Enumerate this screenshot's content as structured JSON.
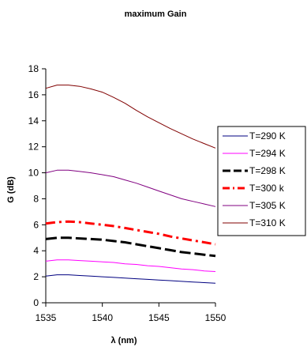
{
  "chart_data": {
    "type": "line",
    "title": "maximum Gain",
    "xlabel": "λ (nm)",
    "ylabel": "G (dB)",
    "xlim": [
      1535,
      1550
    ],
    "ylim": [
      0,
      18
    ],
    "xticks": [
      1535,
      1540,
      1545,
      1550
    ],
    "yticks": [
      0,
      2,
      4,
      6,
      8,
      10,
      12,
      14,
      16,
      18
    ],
    "grid": false,
    "legend_position": "right",
    "x": [
      1535,
      1536,
      1537,
      1538,
      1539,
      1540,
      1541,
      1542,
      1543,
      1544,
      1545,
      1546,
      1547,
      1548,
      1549,
      1550
    ],
    "series": [
      {
        "name": "T=290 K",
        "color": "#000080",
        "dash": "solid",
        "width": 1,
        "values": [
          2.05,
          2.15,
          2.15,
          2.1,
          2.05,
          2.0,
          1.95,
          1.9,
          1.85,
          1.8,
          1.75,
          1.7,
          1.65,
          1.6,
          1.55,
          1.5
        ]
      },
      {
        "name": "T=294 K",
        "color": "#ff00ff",
        "dash": "solid",
        "width": 1,
        "values": [
          3.2,
          3.3,
          3.3,
          3.25,
          3.2,
          3.15,
          3.1,
          3.0,
          2.95,
          2.85,
          2.8,
          2.7,
          2.6,
          2.55,
          2.45,
          2.4
        ]
      },
      {
        "name": "T=298 K",
        "color": "#000000",
        "dash": "long-dash",
        "width": 3,
        "values": [
          4.9,
          5.0,
          5.0,
          4.95,
          4.9,
          4.85,
          4.75,
          4.65,
          4.5,
          4.35,
          4.2,
          4.05,
          3.9,
          3.8,
          3.7,
          3.6
        ]
      },
      {
        "name": "T=300 k",
        "color": "#ff0000",
        "dash": "dash-dot",
        "width": 3,
        "values": [
          6.1,
          6.2,
          6.25,
          6.2,
          6.1,
          6.0,
          5.9,
          5.75,
          5.6,
          5.45,
          5.3,
          5.1,
          4.95,
          4.8,
          4.65,
          4.5
        ]
      },
      {
        "name": "T=305 K",
        "color": "#800080",
        "dash": "solid",
        "width": 1,
        "values": [
          10.0,
          10.2,
          10.2,
          10.1,
          10.0,
          9.85,
          9.7,
          9.45,
          9.2,
          8.9,
          8.6,
          8.3,
          8.0,
          7.8,
          7.6,
          7.4
        ]
      },
      {
        "name": "T=310 K",
        "color": "#800000",
        "dash": "solid",
        "width": 1,
        "values": [
          16.5,
          16.75,
          16.75,
          16.65,
          16.45,
          16.2,
          15.8,
          15.35,
          14.8,
          14.3,
          13.85,
          13.4,
          13.0,
          12.6,
          12.25,
          11.9
        ]
      }
    ]
  }
}
